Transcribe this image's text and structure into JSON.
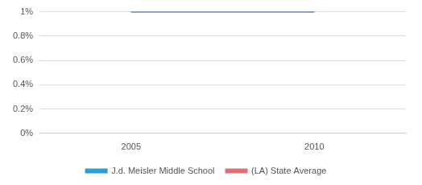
{
  "chart_data": {
    "type": "line",
    "categories": [
      "2005",
      "2010"
    ],
    "series": [
      {
        "name": "J.d. Meisler Middle School",
        "color": "#2a9fd6",
        "values": [
          1,
          1
        ]
      },
      {
        "name": "(LA) State Average",
        "color": "#e07079",
        "values": [
          1,
          1
        ]
      }
    ],
    "ylim": [
      0,
      1
    ],
    "yticks": [
      {
        "value": 0,
        "label": "0%"
      },
      {
        "value": 0.2,
        "label": "0.2%"
      },
      {
        "value": 0.4,
        "label": "0.4%"
      },
      {
        "value": 0.6,
        "label": "0.6%"
      },
      {
        "value": 0.8,
        "label": "0.8%"
      },
      {
        "value": 1,
        "label": "1%"
      }
    ],
    "grid": true,
    "legend": "bottom"
  }
}
